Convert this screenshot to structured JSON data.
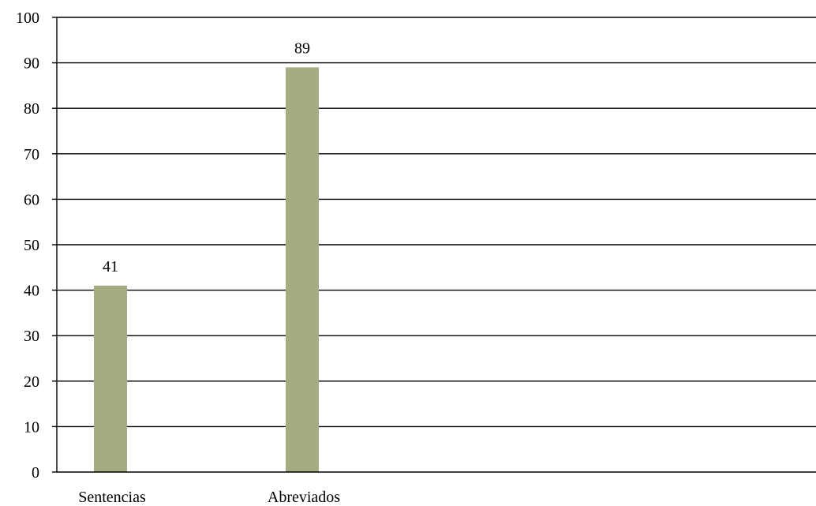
{
  "chart_data": {
    "type": "bar",
    "categories": [
      "Sentencias",
      "Abreviados"
    ],
    "values": [
      41,
      89
    ],
    "data_labels": [
      "41",
      "89"
    ],
    "title": "",
    "xlabel": "",
    "ylabel": "",
    "ylim": [
      0,
      100
    ],
    "y_ticks": [
      "0",
      "10",
      "20",
      "30",
      "40",
      "50",
      "60",
      "70",
      "80",
      "90",
      "100"
    ],
    "grid": true,
    "legend": "none",
    "bar_color": "#a5ac82"
  }
}
